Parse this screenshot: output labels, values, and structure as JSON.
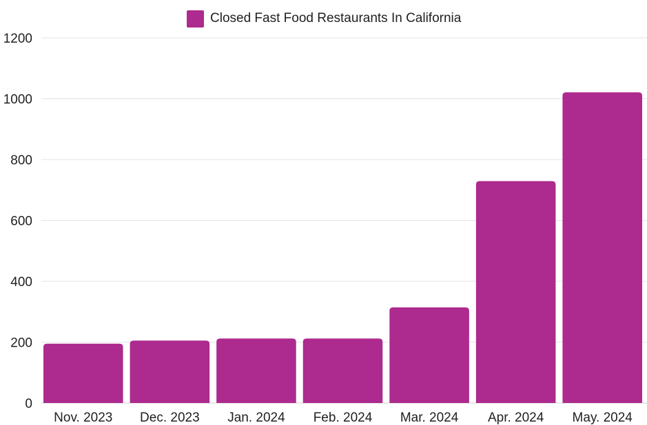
{
  "chart_data": {
    "type": "bar",
    "categories": [
      "Nov. 2023",
      "Dec. 2023",
      "Jan. 2024",
      "Feb. 2024",
      "Mar. 2024",
      "Apr. 2024",
      "May. 2024"
    ],
    "series": [
      {
        "name": "Closed Fast Food Restaurants In California",
        "values": [
          195,
          205,
          212,
          212,
          314,
          729,
          1021
        ],
        "color": "#ad2a8e"
      }
    ],
    "ylim": [
      0,
      1200
    ],
    "yticks": [
      0,
      200,
      400,
      600,
      800,
      1000,
      1200
    ],
    "grid": true,
    "legend_position": "top-center",
    "title": "",
    "xlabel": "",
    "ylabel": ""
  }
}
